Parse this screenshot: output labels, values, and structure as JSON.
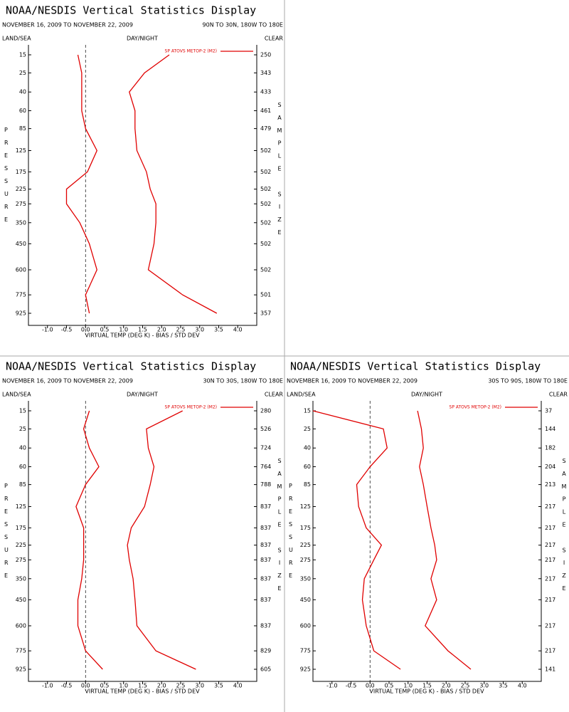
{
  "chart_data": [
    {
      "type": "line",
      "title": "NOAA/NESDIS Vertical Statistics Display",
      "subtitle": "NOVEMBER 16, 2009 TO NOVEMBER 22, 2009",
      "region": "90N TO 30N, 180W TO 180E",
      "land_sea": "LAND/SEA",
      "day_night": "DAY/NIGHT",
      "clear": "CLEAR",
      "y_label": "PRESSURE",
      "y2_label": "SAMPLE SIZE",
      "x_label": "VIRTUAL TEMP (DEG K) - BIAS / STD DEV",
      "legend": "SP ATOVS METOP-2 (M2)",
      "color": "#e00000",
      "levels": [
        15,
        25,
        40,
        60,
        85,
        125,
        175,
        225,
        275,
        350,
        450,
        600,
        775,
        925
      ],
      "sample_sizes": [
        250,
        343,
        433,
        461,
        479,
        502,
        502,
        502,
        502,
        502,
        502,
        502,
        501,
        357
      ],
      "series": [
        {
          "values": [
            -0.2,
            -0.1,
            -0.1,
            -0.1,
            0.0,
            0.3,
            0.05,
            -0.5,
            -0.5,
            -0.15,
            0.1,
            0.3,
            0.0,
            0.1
          ]
        },
        {
          "values": [
            2.2,
            1.55,
            1.15,
            1.3,
            1.3,
            1.35,
            1.6,
            1.7,
            1.85,
            1.85,
            1.8,
            1.65,
            2.55,
            3.45
          ]
        }
      ],
      "xlim": [
        -1.5,
        4.5
      ],
      "xticks": [
        {
          "value": -1,
          "label": "-1.0"
        },
        {
          "value": -0.5,
          "label": "-0.5"
        },
        {
          "value": 0,
          "label": "0.0"
        },
        {
          "value": 0.5,
          "label": "0.5"
        },
        {
          "value": 1,
          "label": "1.0"
        },
        {
          "value": 1.5,
          "label": "1.5"
        },
        {
          "value": 2,
          "label": "2.0"
        },
        {
          "value": 2.5,
          "label": "2.5"
        },
        {
          "value": 3,
          "label": "3.0"
        },
        {
          "value": 3.5,
          "label": "3.5"
        },
        {
          "value": 4,
          "label": "4.0"
        }
      ]
    },
    {
      "type": "line",
      "title": "NOAA/NESDIS Vertical Statistics Display",
      "subtitle": "NOVEMBER 16, 2009 TO NOVEMBER 22, 2009",
      "region": "30N TO 30S, 180W TO 180E",
      "land_sea": "LAND/SEA",
      "day_night": "DAY/NIGHT",
      "clear": "CLEAR",
      "y_label": "PRESSURE",
      "y2_label": "SAMPLE SIZE",
      "x_label": "VIRTUAL TEMP (DEG K) - BIAS / STD DEV",
      "legend": "SP ATOVS METOP-2 (M2)",
      "color": "#e00000",
      "levels": [
        15,
        25,
        40,
        60,
        85,
        125,
        175,
        225,
        275,
        350,
        450,
        600,
        775,
        925
      ],
      "sample_sizes": [
        280,
        526,
        724,
        764,
        788,
        837,
        837,
        837,
        837,
        837,
        837,
        837,
        829,
        605
      ],
      "series": [
        {
          "values": [
            0.1,
            -0.05,
            0.1,
            0.35,
            0.0,
            -0.25,
            -0.05,
            -0.05,
            -0.05,
            -0.1,
            -0.2,
            -0.2,
            0.0,
            0.45
          ]
        },
        {
          "values": [
            2.55,
            1.6,
            1.65,
            1.8,
            1.7,
            1.55,
            1.2,
            1.1,
            1.15,
            1.25,
            1.3,
            1.35,
            1.85,
            2.9
          ]
        }
      ],
      "xlim": [
        -1.5,
        4.5
      ],
      "xticks": [
        {
          "value": -1,
          "label": "-1.0"
        },
        {
          "value": -0.5,
          "label": "-0.5"
        },
        {
          "value": 0,
          "label": "0.0"
        },
        {
          "value": 0.5,
          "label": "0.5"
        },
        {
          "value": 1,
          "label": "1.0"
        },
        {
          "value": 1.5,
          "label": "1.5"
        },
        {
          "value": 2,
          "label": "2.0"
        },
        {
          "value": 2.5,
          "label": "2.5"
        },
        {
          "value": 3,
          "label": "3.0"
        },
        {
          "value": 3.5,
          "label": "3.5"
        },
        {
          "value": 4,
          "label": "4.0"
        }
      ]
    },
    {
      "type": "line",
      "title": "NOAA/NESDIS Vertical Statistics Display",
      "subtitle": "NOVEMBER 16, 2009 TO NOVEMBER 22, 2009",
      "region": "30S TO 90S, 180W TO 180E",
      "land_sea": "LAND/SEA",
      "day_night": "DAY/NIGHT",
      "clear": "CLEAR",
      "y_label": "PRESSURE",
      "y2_label": "SAMPLE SIZE",
      "x_label": "VIRTUAL TEMP (DEG K) - BIAS / STD DEV",
      "legend": "SP ATOVS METOP-2 (M2)",
      "color": "#e00000",
      "levels": [
        15,
        25,
        40,
        60,
        85,
        125,
        175,
        225,
        275,
        350,
        450,
        600,
        775,
        925
      ],
      "sample_sizes": [
        37,
        144,
        182,
        204,
        213,
        217,
        217,
        217,
        217,
        217,
        217,
        217,
        217,
        141
      ],
      "series": [
        {
          "values": [
            -1.5,
            0.35,
            0.45,
            0.0,
            -0.35,
            -0.3,
            -0.1,
            0.3,
            0.1,
            -0.15,
            -0.2,
            -0.1,
            0.1,
            0.8
          ]
        },
        {
          "values": [
            1.25,
            1.35,
            1.4,
            1.3,
            1.4,
            1.5,
            1.6,
            1.7,
            1.75,
            1.6,
            1.75,
            1.45,
            2.05,
            2.65
          ]
        }
      ],
      "xlim": [
        -1.5,
        4.5
      ],
      "xticks": [
        {
          "value": -1,
          "label": "-1.0"
        },
        {
          "value": -0.5,
          "label": "-0.5"
        },
        {
          "value": 0,
          "label": "0.0"
        },
        {
          "value": 0.5,
          "label": "0.5"
        },
        {
          "value": 1,
          "label": "1.0"
        },
        {
          "value": 1.5,
          "label": "1.5"
        },
        {
          "value": 2,
          "label": "2.0"
        },
        {
          "value": 2.5,
          "label": "2.5"
        },
        {
          "value": 3,
          "label": "3.0"
        },
        {
          "value": 3.5,
          "label": "3.5"
        },
        {
          "value": 4,
          "label": "4.0"
        }
      ]
    }
  ]
}
